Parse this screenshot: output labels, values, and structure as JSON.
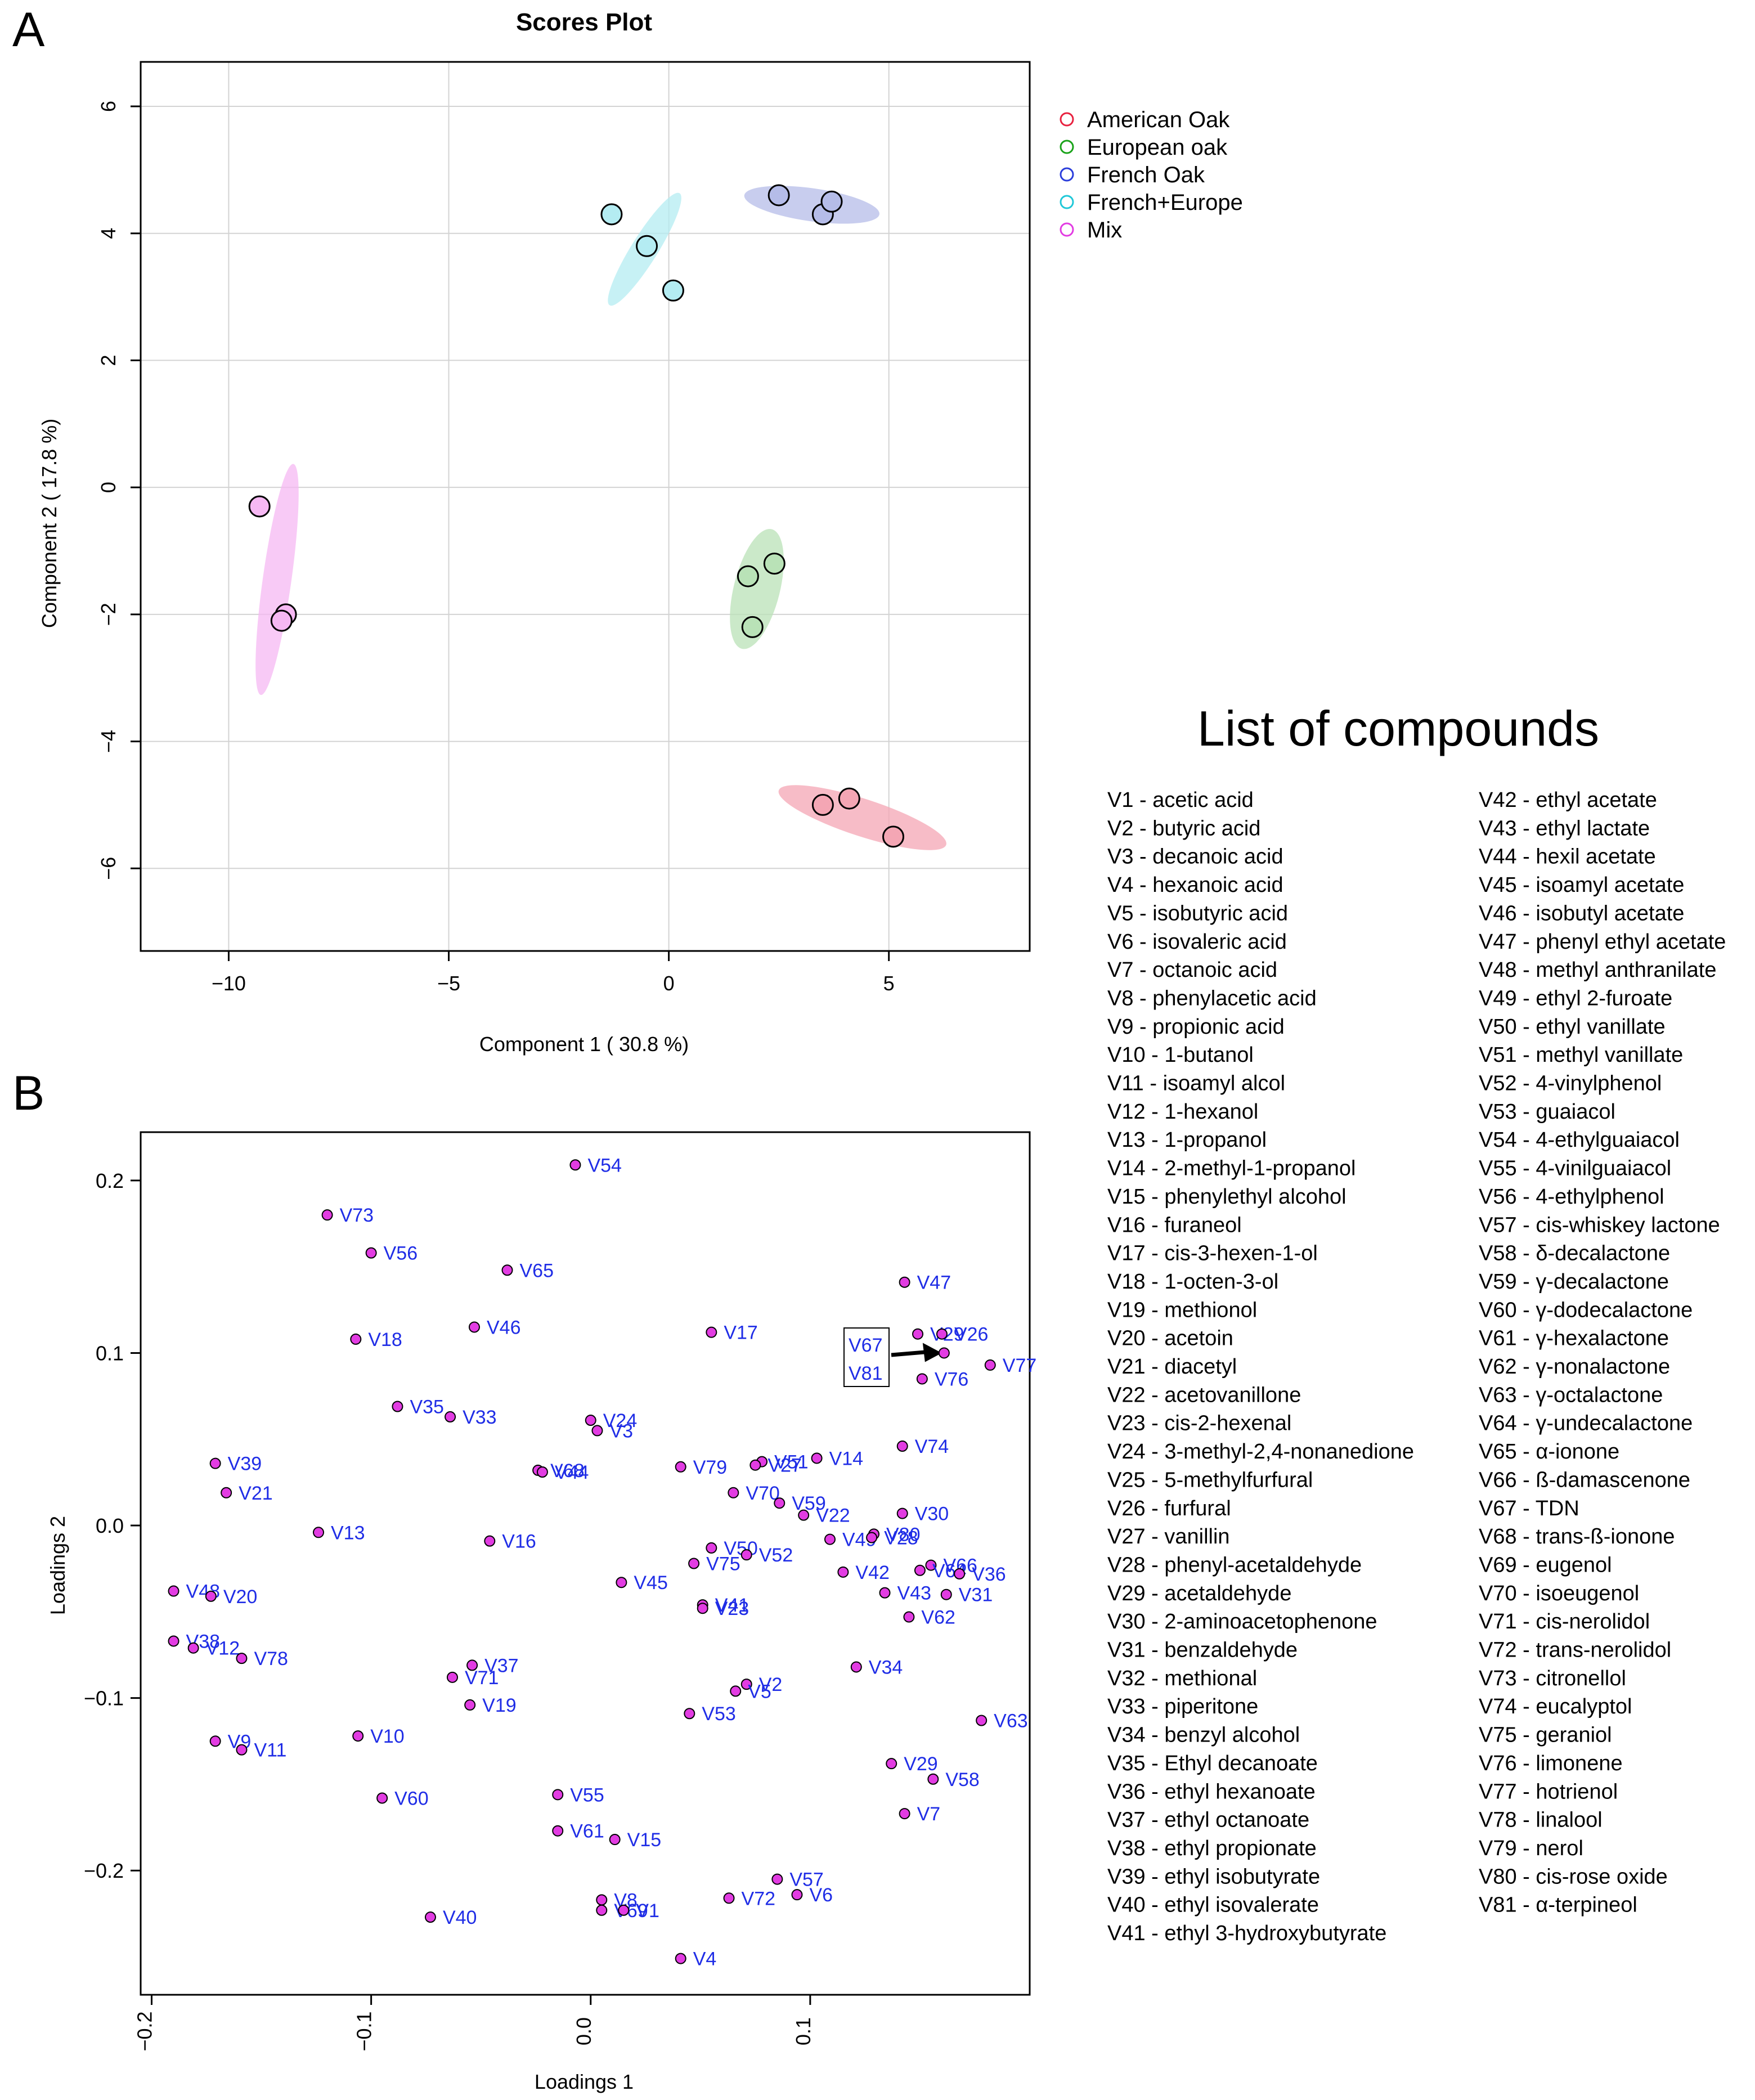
{
  "panels": {
    "a": "A",
    "b": "B"
  },
  "scores": {
    "title": "Scores Plot",
    "xlabel": "Component 1 ( 30.8 %)",
    "ylabel": "Component 2 ( 17.8 %)",
    "xlim": [
      -12,
      8.2
    ],
    "ylim": [
      -7.3,
      6.7
    ],
    "xticks": [
      -10,
      -5,
      0,
      5
    ],
    "yticks": [
      -6,
      -4,
      -2,
      0,
      2,
      4,
      6
    ],
    "groups": [
      {
        "name": "American Oak",
        "color": "#e8213f",
        "fill": "#f4a6b4",
        "points": [
          [
            3.5,
            -5.0
          ],
          [
            4.1,
            -4.9
          ],
          [
            5.1,
            -5.5
          ]
        ],
        "ellipse": {
          "cx": 4.4,
          "cy": -5.2,
          "a": 4.0,
          "b": 0.85,
          "angle": -18
        }
      },
      {
        "name": "European oak",
        "color": "#1aa31a",
        "fill": "#b9e2b7",
        "points": [
          [
            2.4,
            -1.2
          ],
          [
            1.8,
            -1.4
          ],
          [
            1.9,
            -2.2
          ]
        ],
        "ellipse": {
          "cx": 2.0,
          "cy": -1.6,
          "a": 2.8,
          "b": 1.05,
          "angle": 76
        }
      },
      {
        "name": "French Oak",
        "color": "#2b3edb",
        "fill": "#b5bce8",
        "points": [
          [
            2.5,
            4.6
          ],
          [
            3.5,
            4.3
          ],
          [
            3.7,
            4.5
          ]
        ],
        "ellipse": {
          "cx": 3.25,
          "cy": 4.45,
          "a": 3.1,
          "b": 0.75,
          "angle": -8
        }
      },
      {
        "name": "French+Europe",
        "color": "#20c8d8",
        "fill": "#b4ecf2",
        "points": [
          [
            -1.3,
            4.3
          ],
          [
            -0.5,
            3.8
          ],
          [
            0.1,
            3.1
          ]
        ],
        "ellipse": {
          "cx": -0.55,
          "cy": 3.75,
          "a": 3.0,
          "b": 0.6,
          "angle": 58
        }
      },
      {
        "name": "Mix",
        "color": "#e23ce2",
        "fill": "#f6b8f3",
        "points": [
          [
            -9.3,
            -0.3
          ],
          [
            -8.7,
            -2.0
          ],
          [
            -8.8,
            -2.1
          ]
        ],
        "ellipse": {
          "cx": -8.9,
          "cy": -1.45,
          "a": 5.3,
          "b": 0.65,
          "angle": 82
        }
      }
    ]
  },
  "chart_data": [
    {
      "type": "scatter",
      "title": "Scores Plot",
      "xlabel": "Component 1 ( 30.8 %)",
      "ylabel": "Component 2 ( 17.8 %)",
      "series": [
        {
          "name": "American Oak",
          "points": [
            [
              3.5,
              -5.0
            ],
            [
              4.1,
              -4.9
            ],
            [
              5.1,
              -5.5
            ]
          ]
        },
        {
          "name": "European oak",
          "points": [
            [
              2.4,
              -1.2
            ],
            [
              1.8,
              -1.4
            ],
            [
              1.9,
              -2.2
            ]
          ]
        },
        {
          "name": "French Oak",
          "points": [
            [
              2.5,
              4.6
            ],
            [
              3.5,
              4.3
            ],
            [
              3.7,
              4.5
            ]
          ]
        },
        {
          "name": "French+Europe",
          "points": [
            [
              -1.3,
              4.3
            ],
            [
              -0.5,
              3.8
            ],
            [
              0.1,
              3.1
            ]
          ]
        },
        {
          "name": "Mix",
          "points": [
            [
              -9.3,
              -0.3
            ],
            [
              -8.7,
              -2.0
            ],
            [
              -8.8,
              -2.1
            ]
          ]
        }
      ]
    },
    {
      "type": "scatter",
      "title": "",
      "xlabel": "Loadings 1",
      "ylabel": "Loadings 2"
    }
  ],
  "loadings": {
    "xlabel": "Loadings 1",
    "ylabel": "Loadings 2",
    "xlim": [
      -0.205,
      0.2
    ],
    "ylim": [
      -0.272,
      0.228
    ],
    "xticks": [
      -0.2,
      -0.1,
      0.0,
      0.1
    ],
    "xtick_labels": [
      "-0.2",
      "-0.1",
      "0.0",
      "0.1"
    ],
    "yticks": [
      -0.2,
      -0.1,
      0.0,
      0.1,
      0.2
    ],
    "ytick_labels": [
      "-0.2",
      "-0.1",
      "0.0",
      "0.1",
      "0.2"
    ],
    "point_color": "#e23ce2",
    "label_color": "#1f2de6",
    "points": [
      [
        "V54",
        -0.007,
        0.209
      ],
      [
        "V73",
        -0.12,
        0.18
      ],
      [
        "V56",
        -0.1,
        0.158
      ],
      [
        "V65",
        -0.038,
        0.148
      ],
      [
        "V47",
        0.143,
        0.141
      ],
      [
        "V46",
        -0.053,
        0.115
      ],
      [
        "V17",
        0.055,
        0.112
      ],
      [
        "V18",
        -0.107,
        0.108
      ],
      [
        "V29",
        0.149,
        0.111
      ],
      [
        "V26",
        0.16,
        0.111
      ],
      [
        "V76",
        0.151,
        0.085
      ],
      [
        "V77",
        0.182,
        0.093
      ],
      [
        "V35",
        -0.088,
        0.069
      ],
      [
        "V33",
        -0.064,
        0.063
      ],
      [
        "V24",
        0.0,
        0.061
      ],
      [
        "V3",
        0.003,
        0.055
      ],
      [
        "V74",
        0.142,
        0.046
      ],
      [
        "V39",
        -0.171,
        0.036
      ],
      [
        "V79",
        0.041,
        0.034
      ],
      [
        "V51",
        0.078,
        0.037
      ],
      [
        "V27",
        0.075,
        0.035
      ],
      [
        "V14",
        0.103,
        0.039
      ],
      [
        "V68",
        -0.024,
        0.032
      ],
      [
        "V44",
        -0.022,
        0.031
      ],
      [
        "V21",
        -0.166,
        0.019
      ],
      [
        "V70",
        0.065,
        0.019
      ],
      [
        "V59",
        0.086,
        0.013
      ],
      [
        "V22",
        0.097,
        0.006
      ],
      [
        "V30",
        0.142,
        0.007
      ],
      [
        "V13",
        -0.124,
        -0.004
      ],
      [
        "V16",
        -0.046,
        -0.009
      ],
      [
        "V49",
        0.109,
        -0.008
      ],
      [
        "V80",
        0.129,
        -0.005
      ],
      [
        "V28",
        0.128,
        -0.007
      ],
      [
        "V50",
        0.055,
        -0.013
      ],
      [
        "V75",
        0.047,
        -0.022
      ],
      [
        "V52",
        0.071,
        -0.017
      ],
      [
        "V66",
        0.155,
        -0.023
      ],
      [
        "V64",
        0.15,
        -0.026
      ],
      [
        "V36",
        0.168,
        -0.028
      ],
      [
        "V42",
        0.115,
        -0.027
      ],
      [
        "V43",
        0.134,
        -0.039
      ],
      [
        "V31",
        0.162,
        -0.04
      ],
      [
        "V45",
        0.014,
        -0.033
      ],
      [
        "V48",
        -0.19,
        -0.038
      ],
      [
        "V20",
        -0.173,
        -0.041
      ],
      [
        "V41",
        0.051,
        -0.046
      ],
      [
        "V23",
        0.051,
        -0.048
      ],
      [
        "V62",
        0.145,
        -0.053
      ],
      [
        "V38",
        -0.19,
        -0.067
      ],
      [
        "V12",
        -0.181,
        -0.071
      ],
      [
        "V78",
        -0.159,
        -0.077
      ],
      [
        "V37",
        -0.054,
        -0.081
      ],
      [
        "V71",
        -0.063,
        -0.088
      ],
      [
        "V34",
        0.121,
        -0.082
      ],
      [
        "V2",
        0.071,
        -0.092
      ],
      [
        "V5",
        0.066,
        -0.096
      ],
      [
        "V19",
        -0.055,
        -0.104
      ],
      [
        "V53",
        0.045,
        -0.109
      ],
      [
        "V63",
        0.178,
        -0.113
      ],
      [
        "V9",
        -0.171,
        -0.125
      ],
      [
        "V11",
        -0.159,
        -0.13
      ],
      [
        "V10",
        -0.106,
        -0.122
      ],
      [
        "V29b",
        0.137,
        -0.138
      ],
      [
        "V58",
        0.156,
        -0.147
      ],
      [
        "V60",
        -0.095,
        -0.158
      ],
      [
        "V55",
        -0.015,
        -0.156
      ],
      [
        "V7",
        0.143,
        -0.167
      ],
      [
        "V61",
        -0.015,
        -0.177
      ],
      [
        "V15",
        0.011,
        -0.182
      ],
      [
        "V57",
        0.085,
        -0.205
      ],
      [
        "V6",
        0.094,
        -0.214
      ],
      [
        "V72",
        0.063,
        -0.216
      ],
      [
        "V8",
        0.005,
        -0.217
      ],
      [
        "V69",
        0.005,
        -0.223
      ],
      [
        "V1",
        0.015,
        -0.223
      ],
      [
        "V40",
        -0.073,
        -0.227
      ],
      [
        "V4",
        0.041,
        -0.251
      ]
    ],
    "labels": {
      "V29b": "V29",
      "V26": "V26",
      "V29": "V29"
    },
    "callout": {
      "line1": "V67",
      "line2": "V81",
      "target": [
        0.161,
        0.1
      ]
    }
  },
  "compounds": {
    "title": "List of compounds",
    "col1": [
      "V1 - acetic acid",
      "V2 - butyric acid",
      "V3 - decanoic acid",
      "V4 - hexanoic acid",
      "V5 - isobutyric acid",
      "V6 - isovaleric acid",
      "V7 - octanoic acid",
      "V8 - phenylacetic acid",
      "V9 - propionic acid",
      "V10 - 1-butanol",
      "V11 - isoamyl alcol",
      "V12 - 1-hexanol",
      "V13 - 1-propanol",
      "V14 - 2-methyl-1-propanol",
      "V15 - phenylethyl alcohol",
      "V16 - furaneol",
      "V17 - cis-3-hexen-1-ol",
      "V18 - 1-octen-3-ol",
      "V19 - methionol",
      "V20 - acetoin",
      "V21 - diacetyl",
      "V22 - acetovanillone",
      "V23 - cis-2-hexenal",
      "V24 - 3-methyl-2,4-nonanedione",
      "V25 - 5-methylfurfural",
      "V26 - furfural",
      "V27 - vanillin",
      "V28 - phenyl-acetaldehyde",
      "V29 - acetaldehyde",
      "V30 - 2-aminoacetophenone",
      "V31 - benzaldehyde",
      "V32 - methional",
      "V33 - piperitone",
      "V34 - benzyl alcohol",
      "V35 - Ethyl decanoate",
      "V36 - ethyl hexanoate",
      "V37 - ethyl octanoate",
      "V38 - ethyl propionate",
      "V39 - ethyl isobutyrate",
      "V40 - ethyl isovalerate",
      "V41 - ethyl 3-hydroxybutyrate"
    ],
    "col2": [
      "V42 - ethyl acetate",
      "V43 - ethyl lactate",
      "V44 - hexil acetate",
      "V45 - isoamyl acetate",
      "V46 - isobutyl acetate",
      "V47 - phenyl ethyl acetate",
      "V48 - methyl anthranilate",
      "V49 - ethyl 2-furoate",
      "V50 - ethyl vanillate",
      "V51 - methyl vanillate",
      "V52 - 4-vinylphenol",
      "V53 - guaiacol",
      "V54 - 4-ethylguaiacol",
      "V55 - 4-vinilguaiacol",
      "V56 - 4-ethylphenol",
      "V57 - cis-whiskey lactone",
      "V58 - δ-decalactone",
      "V59 - γ-decalactone",
      "V60 - γ-dodecalactone",
      "V61 - γ-hexalactone",
      "V62 - γ-nonalactone",
      "V63 - γ-octalactone",
      "V64 - γ-undecalactone",
      "V65 - α-ionone",
      "V66 - ß-damascenone",
      "V67 - TDN",
      "V68 - trans-ß-ionone",
      "V69 - eugenol",
      "V70 - isoeugenol",
      "V71 - cis-nerolidol",
      "V72 - trans-nerolidol",
      "V73 - citronellol",
      "V74 - eucalyptol",
      "V75 - geraniol",
      "V76 - limonene",
      "V77 - hotrienol",
      "V78 - linalool",
      "V79 - nerol",
      "V80 - cis-rose oxide",
      "V81 - α-terpineol"
    ]
  }
}
